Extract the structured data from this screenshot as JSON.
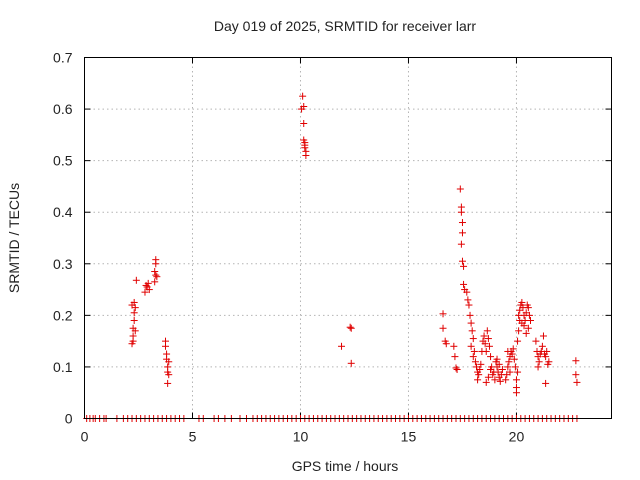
{
  "chart_data": {
    "type": "scatter",
    "title": "Day 019 of 2025, SRMTID for receiver larr",
    "xlabel": "GPS time / hours",
    "ylabel": "SRMTID / TECUs",
    "xlim": [
      0,
      24.4
    ],
    "ylim": [
      0,
      0.7
    ],
    "xticks": [
      0,
      5,
      10,
      15,
      20
    ],
    "xtick_labels": [
      "0",
      "5",
      "10",
      "15",
      "20"
    ],
    "yticks": [
      0,
      0.1,
      0.2,
      0.3,
      0.4,
      0.5,
      0.6,
      0.7
    ],
    "ytick_labels": [
      "0",
      "0.1",
      "0.2",
      "0.3",
      "0.4",
      "0.5",
      "0.6",
      "0.7"
    ],
    "grid": true,
    "marker": "+",
    "color": "#e00000",
    "series": [
      {
        "name": "SRMTID",
        "points": [
          [
            2.2,
            0.145
          ],
          [
            2.25,
            0.16
          ],
          [
            2.25,
            0.175
          ],
          [
            2.3,
            0.19
          ],
          [
            2.3,
            0.205
          ],
          [
            2.35,
            0.215
          ],
          [
            2.3,
            0.225
          ],
          [
            2.35,
            0.17
          ],
          [
            2.2,
            0.22
          ],
          [
            2.4,
            0.268
          ],
          [
            2.25,
            0.15
          ],
          [
            2.8,
            0.245
          ],
          [
            2.9,
            0.255
          ],
          [
            2.95,
            0.262
          ],
          [
            3.0,
            0.25
          ],
          [
            2.85,
            0.258
          ],
          [
            3.25,
            0.265
          ],
          [
            3.3,
            0.278
          ],
          [
            3.25,
            0.285
          ],
          [
            3.3,
            0.3
          ],
          [
            3.3,
            0.308
          ],
          [
            3.35,
            0.275
          ],
          [
            3.75,
            0.14
          ],
          [
            3.75,
            0.15
          ],
          [
            3.8,
            0.125
          ],
          [
            3.8,
            0.115
          ],
          [
            3.85,
            0.1
          ],
          [
            3.85,
            0.09
          ],
          [
            3.9,
            0.085
          ],
          [
            3.85,
            0.068
          ],
          [
            3.9,
            0.11
          ],
          [
            10.1,
            0.625
          ],
          [
            10.05,
            0.6
          ],
          [
            10.15,
            0.605
          ],
          [
            10.15,
            0.572
          ],
          [
            10.15,
            0.54
          ],
          [
            10.2,
            0.535
          ],
          [
            10.2,
            0.525
          ],
          [
            10.25,
            0.518
          ],
          [
            10.25,
            0.51
          ],
          [
            10.2,
            0.53
          ],
          [
            11.9,
            0.14
          ],
          [
            12.3,
            0.177
          ],
          [
            12.35,
            0.175
          ],
          [
            12.35,
            0.107
          ],
          [
            16.6,
            0.203
          ],
          [
            16.7,
            0.15
          ],
          [
            16.75,
            0.145
          ],
          [
            16.6,
            0.175
          ],
          [
            17.1,
            0.14
          ],
          [
            17.15,
            0.12
          ],
          [
            17.2,
            0.098
          ],
          [
            17.25,
            0.095
          ],
          [
            17.4,
            0.445
          ],
          [
            17.45,
            0.41
          ],
          [
            17.45,
            0.4
          ],
          [
            17.5,
            0.38
          ],
          [
            17.5,
            0.36
          ],
          [
            17.45,
            0.338
          ],
          [
            17.5,
            0.305
          ],
          [
            17.55,
            0.295
          ],
          [
            17.55,
            0.26
          ],
          [
            17.6,
            0.25
          ],
          [
            17.7,
            0.245
          ],
          [
            17.75,
            0.23
          ],
          [
            17.8,
            0.22
          ],
          [
            17.85,
            0.2
          ],
          [
            17.9,
            0.185
          ],
          [
            17.95,
            0.17
          ],
          [
            18.0,
            0.155
          ],
          [
            17.9,
            0.14
          ],
          [
            18.05,
            0.13
          ],
          [
            18.0,
            0.12
          ],
          [
            18.1,
            0.11
          ],
          [
            18.15,
            0.1
          ],
          [
            18.2,
            0.09
          ],
          [
            18.25,
            0.085
          ],
          [
            18.2,
            0.075
          ],
          [
            18.3,
            0.095
          ],
          [
            18.35,
            0.105
          ],
          [
            18.4,
            0.13
          ],
          [
            18.45,
            0.15
          ],
          [
            18.5,
            0.16
          ],
          [
            18.55,
            0.145
          ],
          [
            18.6,
            0.13
          ],
          [
            18.65,
            0.17
          ],
          [
            18.7,
            0.155
          ],
          [
            18.75,
            0.14
          ],
          [
            18.8,
            0.12
          ],
          [
            18.85,
            0.1
          ],
          [
            18.9,
            0.085
          ],
          [
            18.95,
            0.09
          ],
          [
            19.0,
            0.075
          ],
          [
            18.6,
            0.07
          ],
          [
            18.7,
            0.08
          ],
          [
            18.8,
            0.095
          ],
          [
            19.05,
            0.11
          ],
          [
            19.1,
            0.1
          ],
          [
            19.15,
            0.09
          ],
          [
            19.2,
            0.08
          ],
          [
            19.25,
            0.072
          ],
          [
            19.3,
            0.085
          ],
          [
            19.35,
            0.095
          ],
          [
            19.1,
            0.115
          ],
          [
            19.2,
            0.105
          ],
          [
            19.5,
            0.075
          ],
          [
            19.55,
            0.085
          ],
          [
            19.6,
            0.1
          ],
          [
            19.65,
            0.11
          ],
          [
            19.7,
            0.12
          ],
          [
            19.75,
            0.13
          ],
          [
            19.8,
            0.125
          ],
          [
            19.85,
            0.135
          ],
          [
            19.9,
            0.115
          ],
          [
            19.95,
            0.1
          ],
          [
            19.6,
            0.13
          ],
          [
            19.7,
            0.09
          ],
          [
            20.0,
            0.05
          ],
          [
            20.0,
            0.06
          ],
          [
            20.05,
            0.09
          ],
          [
            20.0,
            0.075
          ],
          [
            20.05,
            0.15
          ],
          [
            20.1,
            0.17
          ],
          [
            20.15,
            0.19
          ],
          [
            20.1,
            0.2
          ],
          [
            20.15,
            0.21
          ],
          [
            20.2,
            0.22
          ],
          [
            20.25,
            0.225
          ],
          [
            20.3,
            0.215
          ],
          [
            20.35,
            0.2
          ],
          [
            20.4,
            0.19
          ],
          [
            20.45,
            0.205
          ],
          [
            20.5,
            0.22
          ],
          [
            20.55,
            0.215
          ],
          [
            20.6,
            0.2
          ],
          [
            20.65,
            0.19
          ],
          [
            20.55,
            0.175
          ],
          [
            20.45,
            0.165
          ],
          [
            20.35,
            0.18
          ],
          [
            20.25,
            0.185
          ],
          [
            20.9,
            0.15
          ],
          [
            20.95,
            0.13
          ],
          [
            21.0,
            0.12
          ],
          [
            21.05,
            0.11
          ],
          [
            21.1,
            0.125
          ],
          [
            21.15,
            0.13
          ],
          [
            21.2,
            0.14
          ],
          [
            21.25,
            0.16
          ],
          [
            21.3,
            0.125
          ],
          [
            21.35,
            0.12
          ],
          [
            21.4,
            0.13
          ],
          [
            21.45,
            0.105
          ],
          [
            21.5,
            0.11
          ],
          [
            21.35,
            0.068
          ],
          [
            21.0,
            0.1
          ],
          [
            22.75,
            0.112
          ],
          [
            22.75,
            0.085
          ],
          [
            22.8,
            0.07
          ]
        ],
        "zero_points_x": [
          0.1,
          0.25,
          0.4,
          0.5,
          0.7,
          0.9,
          1.0,
          1.5,
          1.8,
          2.0,
          2.2,
          2.4,
          2.6,
          2.8,
          3.0,
          3.2,
          3.4,
          3.6,
          3.8,
          4.0,
          4.2,
          4.4,
          4.6,
          5.3,
          5.5,
          6.0,
          6.2,
          6.5,
          6.8,
          7.2,
          7.5,
          7.8,
          8.0,
          8.2,
          8.4,
          8.6,
          8.8,
          9.0,
          9.2,
          9.4,
          9.6,
          9.8,
          10.0,
          10.2,
          10.4,
          10.6,
          10.8,
          11.0,
          11.2,
          11.4,
          11.6,
          11.8,
          12.0,
          12.2,
          12.4,
          12.6,
          12.8,
          13.0,
          13.2,
          13.4,
          13.6,
          13.8,
          14.0,
          14.2,
          14.4,
          14.6,
          14.8,
          15.0,
          15.2,
          15.4,
          15.6,
          15.8,
          16.0,
          16.2,
          16.4,
          16.6,
          16.8,
          17.0,
          17.2,
          17.4,
          17.6,
          17.8,
          18.0,
          18.2,
          18.4,
          18.6,
          18.8,
          19.0,
          19.2,
          19.4,
          19.6,
          19.8,
          20.0,
          20.2,
          20.4,
          20.6,
          20.8,
          21.0,
          21.2,
          21.4,
          21.6,
          21.8,
          22.0,
          22.2,
          22.4,
          22.6,
          22.8
        ]
      }
    ]
  }
}
